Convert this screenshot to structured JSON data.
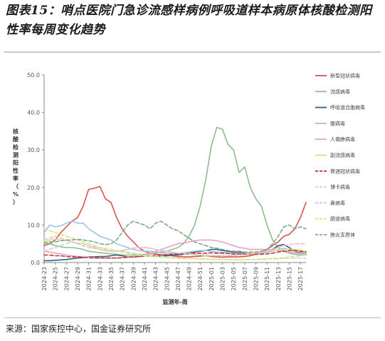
{
  "header": {
    "title": "图表15：哨点医院门急诊流感样病例呼吸道样本病原体核酸检测阳性率每周变化趋势"
  },
  "footer": {
    "source": "来源：国家疾控中心，国金证券研究所"
  },
  "chart_data": {
    "type": "line",
    "xlabel": "监测年-周",
    "ylabel": "核酸检测阳性率（%）",
    "ylim": [
      0,
      50
    ],
    "yticks": [
      0.0,
      10.0,
      20.0,
      30.0,
      40.0,
      50.0
    ],
    "ytick_labels": [
      "0.0",
      "10.0",
      "20.0",
      "30.0",
      "40.0",
      "50.0"
    ],
    "x_tick_labels": [
      "2024-23",
      "2024-25",
      "2024-27",
      "2024-29",
      "2024-31",
      "2024-33",
      "2024-35",
      "2024-37",
      "2024-39",
      "2024-41",
      "2024-43",
      "2024-45",
      "2024-47",
      "2024-49",
      "2024-51",
      "2025-01",
      "2025-03",
      "2025-05",
      "2025-07",
      "2025-09",
      "2025-11",
      "2025-13",
      "2025-15",
      "2025-17"
    ],
    "categories": [
      "2024-23",
      "2024-24",
      "2024-25",
      "2024-26",
      "2024-27",
      "2024-28",
      "2024-29",
      "2024-30",
      "2024-31",
      "2024-32",
      "2024-33",
      "2024-34",
      "2024-35",
      "2024-36",
      "2024-37",
      "2024-38",
      "2024-39",
      "2024-40",
      "2024-41",
      "2024-42",
      "2024-43",
      "2024-44",
      "2024-45",
      "2024-46",
      "2024-47",
      "2024-48",
      "2024-49",
      "2024-50",
      "2024-51",
      "2024-52",
      "2025-01",
      "2025-02",
      "2025-03",
      "2025-04",
      "2025-05",
      "2025-06",
      "2025-07",
      "2025-08",
      "2025-09",
      "2025-10",
      "2025-11",
      "2025-12",
      "2025-13",
      "2025-14",
      "2025-15",
      "2025-16",
      "2025-17",
      "2025-18"
    ],
    "legend_position": "right",
    "series": [
      {
        "name": "新型冠状病毒",
        "color": "#d9534f",
        "dash": "solid",
        "values": [
          4.5,
          5,
          6,
          8,
          9.5,
          11,
          12,
          15,
          19.5,
          19.8,
          20.3,
          17,
          16,
          12,
          9,
          7,
          5.5,
          4,
          3,
          2.5,
          2.2,
          2.1,
          2,
          1.8,
          1.6,
          1.5,
          1.5,
          1.6,
          1.7,
          1.8,
          1.6,
          1.5,
          1.4,
          1.5,
          1.5,
          1.5,
          1.6,
          1.8,
          2.2,
          2.8,
          3.5,
          4.5,
          5.5,
          7,
          7.5,
          9,
          12,
          16
        ]
      },
      {
        "name": "流感病毒",
        "color": "#8fbc8f",
        "dash": "solid",
        "values": [
          5.5,
          5,
          4.5,
          4.2,
          4,
          4,
          3.8,
          3.5,
          3,
          2.8,
          2.6,
          2.5,
          2.3,
          2.2,
          2,
          2,
          2,
          2.1,
          2.2,
          2.3,
          2.5,
          2.8,
          3,
          3.5,
          4,
          5,
          7,
          10,
          15,
          22,
          31,
          36,
          35.5,
          31.5,
          30,
          24,
          25.5,
          20,
          17,
          15,
          10,
          6,
          4,
          3,
          2.5,
          2.2,
          2,
          2
        ]
      },
      {
        "name": "呼吸道合胞病毒",
        "color": "#2f5f8f",
        "dash": "solid",
        "values": [
          0.5,
          0.5,
          0.6,
          0.7,
          0.8,
          1,
          1.2,
          1.3,
          1.5,
          1.5,
          1.6,
          1.6,
          1.8,
          2,
          1.8,
          1.5,
          1.5,
          1.6,
          1.8,
          1.8,
          1.7,
          1.6,
          1.8,
          2,
          2,
          2.2,
          2.5,
          2.8,
          3,
          3.2,
          3.5,
          3.5,
          3.2,
          3,
          2.8,
          2.8,
          2.5,
          2.5,
          2.6,
          2.8,
          3,
          3.5,
          4.5,
          4.8,
          4,
          3,
          2.5,
          2.2
        ]
      },
      {
        "name": "腺病毒",
        "color": "#9ec4e8",
        "dash": "solid",
        "values": [
          8,
          10,
          9.5,
          9.8,
          10.5,
          11,
          10.5,
          10.5,
          9,
          8,
          7,
          6.5,
          6,
          5,
          4.5,
          4,
          3.5,
          3.2,
          3,
          3,
          2.8,
          2.6,
          2.5,
          2.5,
          2.5,
          2.6,
          2.8,
          3,
          3.2,
          3.2,
          3,
          2.8,
          2.7,
          2.6,
          2.5,
          2.4,
          2.3,
          2.3,
          2.3,
          2.5,
          2.7,
          3,
          3.5,
          3.8,
          3.5,
          3,
          2.8,
          2.6
        ]
      },
      {
        "name": "人偏肺病毒",
        "color": "#e8a0c8",
        "dash": "solid",
        "values": [
          3,
          2.8,
          2.5,
          2.3,
          2,
          1.8,
          1.6,
          1.5,
          1.4,
          1.3,
          1.2,
          1.2,
          1.2,
          1.2,
          1.3,
          1.5,
          1.6,
          1.8,
          2,
          2.5,
          3,
          3.5,
          4,
          4.5,
          5,
          5.2,
          5.5,
          5.8,
          6,
          6,
          6,
          5.8,
          5.5,
          5,
          4.5,
          4,
          3.8,
          3.5,
          3.5,
          3.5,
          3.5,
          3.4,
          3.2,
          3,
          2.8,
          2.6,
          2.4,
          2.2
        ]
      },
      {
        "name": "副流感病毒",
        "color": "#d4e08a",
        "dash": "solid",
        "values": [
          5.5,
          6,
          6.2,
          6,
          5.8,
          5.5,
          5.2,
          5,
          4.5,
          4,
          3.5,
          3.2,
          3,
          3,
          3.2,
          3.5,
          3.8,
          4,
          4,
          3.8,
          3.5,
          3.2,
          3,
          2.8,
          2.5,
          2.3,
          2.2,
          2,
          2,
          1.8,
          1.8,
          1.8,
          1.8,
          1.8,
          2,
          2.2,
          2.4,
          2.5,
          2.6,
          2.8,
          3,
          3.2,
          3.4,
          3.5,
          3.5,
          3.5,
          3.3,
          3
        ]
      },
      {
        "name": "普通冠状病毒",
        "color": "#c0392b",
        "dash": "dash",
        "values": [
          2,
          2,
          1.8,
          1.8,
          1.6,
          1.5,
          1.5,
          1.4,
          1.3,
          1.2,
          1.2,
          1.2,
          1.2,
          1.2,
          1.3,
          1.4,
          1.5,
          1.6,
          1.7,
          1.8,
          1.9,
          2,
          2.1,
          2.2,
          2.3,
          2.3,
          2.4,
          2.5,
          2.5,
          2.5,
          2.6,
          2.5,
          2.5,
          2.4,
          2.3,
          2.3,
          2.2,
          2.2,
          2.2,
          2.2,
          2.3,
          2.5,
          2.8,
          3,
          3.2,
          3.2,
          3,
          2.8
        ]
      },
      {
        "name": "博卡病毒",
        "color": "#d3d3d3",
        "dash": "dash",
        "values": [
          3,
          3.5,
          4,
          4.5,
          5,
          5.5,
          5.2,
          5,
          4.5,
          4.2,
          4,
          3.8,
          3.5,
          3.2,
          3,
          2.8,
          2.5,
          2.3,
          2,
          1.8,
          1.8,
          1.6,
          1.5,
          1.4,
          1.3,
          1.2,
          1.1,
          1,
          1,
          1,
          0.9,
          0.9,
          0.8,
          0.8,
          0.8,
          0.8,
          0.8,
          0.8,
          0.8,
          0.8,
          0.9,
          1,
          1,
          1.1,
          1.2,
          1.2,
          1.2,
          1.2
        ]
      },
      {
        "name": "鼻病毒",
        "color": "#f0b8d8",
        "dash": "dash",
        "values": [
          6,
          6.5,
          7,
          6.5,
          6,
          5.5,
          5,
          4.5,
          4,
          3.8,
          3.5,
          3.2,
          3,
          3,
          3.2,
          3.5,
          3.8,
          4,
          4,
          3.8,
          3.5,
          3.2,
          3,
          2.8,
          2.5,
          2.5,
          2.4,
          2.2,
          2,
          2,
          1.9,
          1.8,
          1.8,
          1.8,
          1.9,
          2,
          2,
          2.2,
          2.5,
          2.8,
          3,
          3.5,
          4,
          4.5,
          4.8,
          5,
          5,
          5
        ]
      },
      {
        "name": "肠道病毒",
        "color": "#dce67a",
        "dash": "dash",
        "values": [
          9,
          8.5,
          8,
          7.5,
          7,
          6.5,
          6,
          5.5,
          5,
          4.5,
          4,
          3.5,
          3.2,
          3,
          2.8,
          2.5,
          2.3,
          2,
          1.8,
          1.6,
          1.5,
          1.4,
          1.3,
          1.2,
          1.1,
          1,
          1,
          1,
          0.9,
          0.9,
          0.9,
          0.8,
          0.8,
          0.8,
          0.8,
          0.8,
          0.8,
          0.8,
          0.9,
          1,
          1,
          1.1,
          1.2,
          1.3,
          1.5,
          1.6,
          1.8,
          2
        ]
      },
      {
        "name": "肺炎支原体",
        "color": "#7fa88f",
        "dash": "dash",
        "values": [
          5,
          5.5,
          5.5,
          5.8,
          6,
          6,
          6.2,
          6,
          5.8,
          5.5,
          5,
          4.8,
          5,
          6,
          8,
          10,
          11,
          10.5,
          10,
          9,
          10.5,
          11,
          10,
          9,
          8.5,
          7.5,
          6.5,
          5.5,
          5,
          4.5,
          4,
          3.8,
          3.5,
          3.2,
          3,
          3,
          2.8,
          2.8,
          2.8,
          3,
          3.5,
          5,
          7,
          9.5,
          10,
          9,
          9.5,
          9
        ]
      }
    ]
  }
}
